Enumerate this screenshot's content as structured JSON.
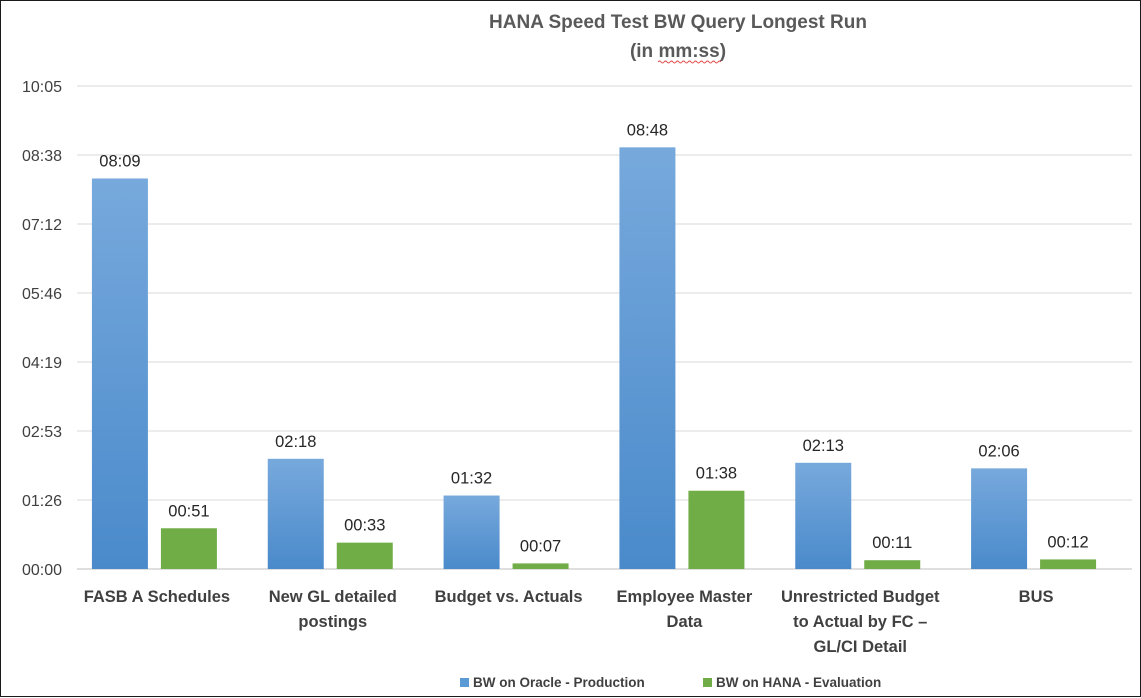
{
  "chart_data": {
    "type": "bar",
    "title_line1": "HANA Speed Test BW Query Longest Run",
    "title_line2": "(in mm:ss)",
    "y_ticks": [
      "00:00",
      "01:26",
      "02:53",
      "04:19",
      "05:46",
      "07:12",
      "08:38",
      "10:05"
    ],
    "y_tick_seconds": [
      0,
      86.4,
      172.8,
      259.2,
      345.6,
      432,
      518.4,
      604.8
    ],
    "ylim_seconds": [
      0,
      604.8
    ],
    "grid": true,
    "legend_position": "bottom",
    "categories": [
      [
        "FASB A Schedules"
      ],
      [
        "New GL detailed",
        "postings"
      ],
      [
        "Budget vs. Actuals"
      ],
      [
        "Employee Master",
        "Data"
      ],
      [
        "Unrestricted Budget",
        "to Actual by FC –",
        "GL/CI Detail"
      ],
      [
        "BUS"
      ]
    ],
    "series": [
      {
        "name": "BW on Oracle - Production",
        "color": "#5b9bd5",
        "values_seconds": [
          489,
          138,
          92,
          528,
          133,
          126
        ],
        "labels": [
          "08:09",
          "02:18",
          "01:32",
          "08:48",
          "02:13",
          "02:06"
        ]
      },
      {
        "name": "BW on HANA - Evaluation",
        "color": "#70ad47",
        "values_seconds": [
          51,
          33,
          7,
          98,
          11,
          12
        ],
        "labels": [
          "00:51",
          "00:33",
          "00:07",
          "01:38",
          "00:11",
          "00:12"
        ]
      }
    ]
  }
}
